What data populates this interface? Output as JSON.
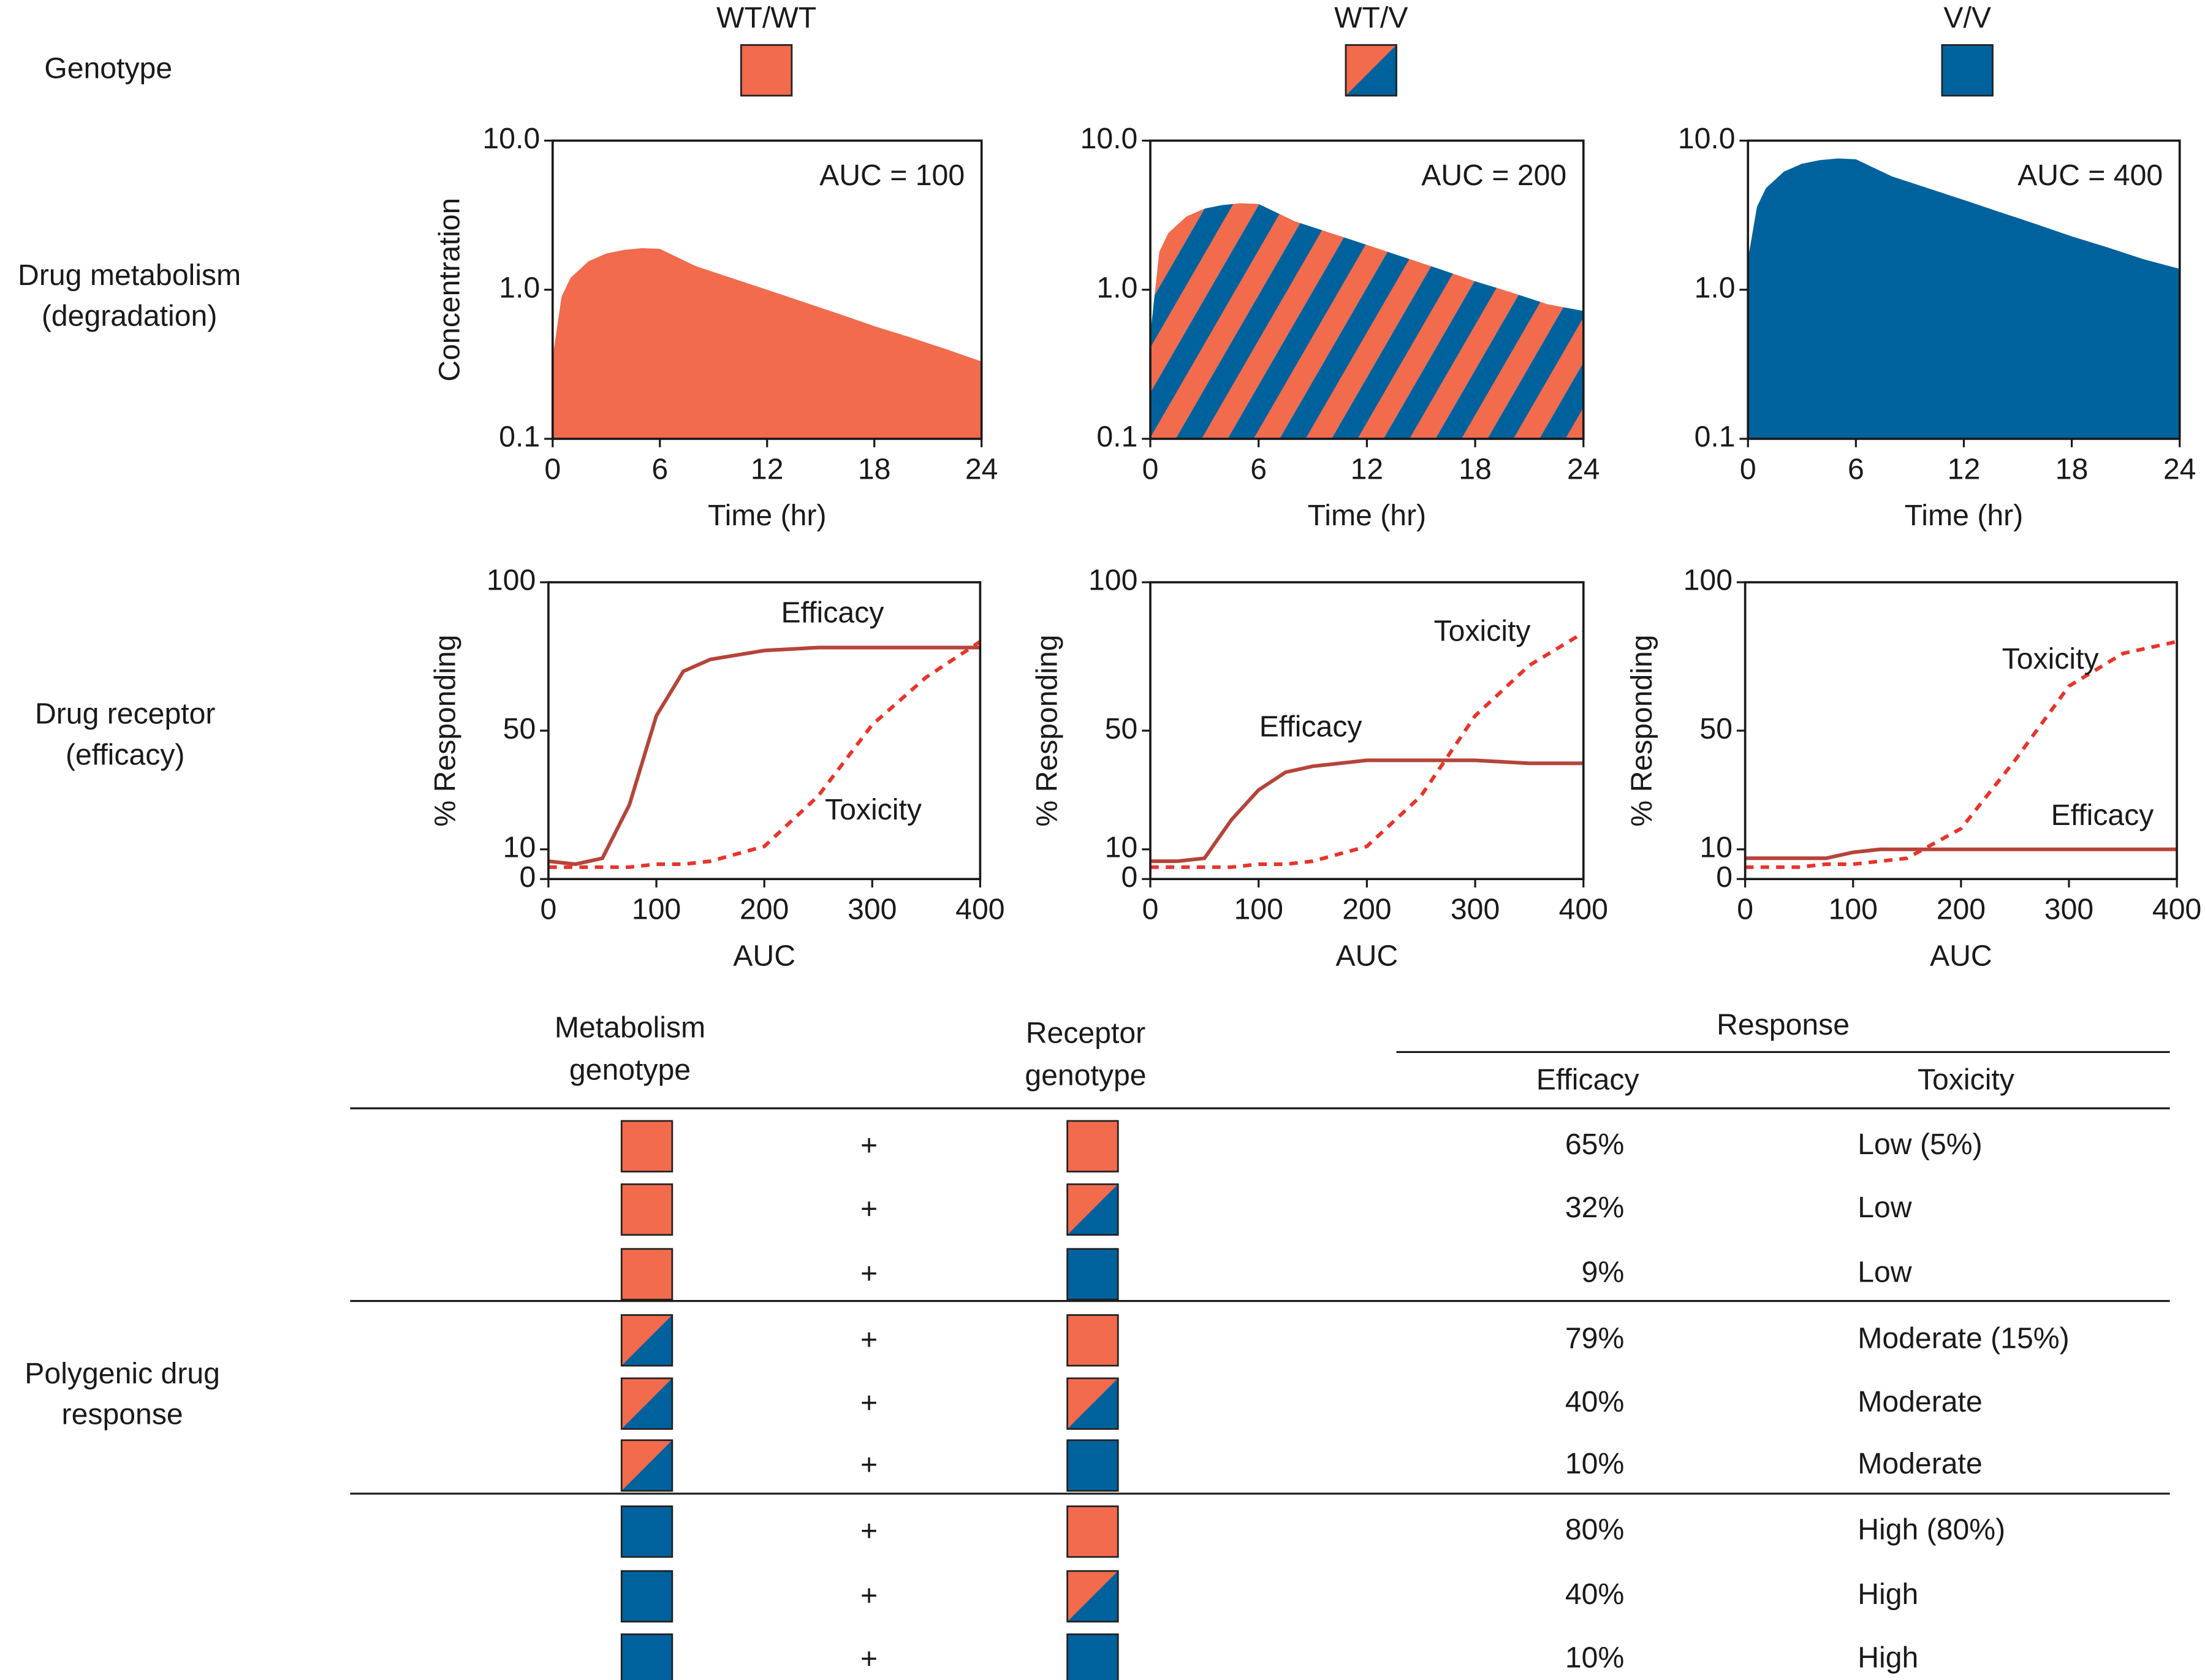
{
  "row_labels": {
    "genotype": "Genotype",
    "metabolism": [
      "Drug metabolism",
      "(degradation)"
    ],
    "receptor": [
      "Drug receptor",
      "(efficacy)"
    ],
    "polygenic": [
      "Polygenic drug",
      "response"
    ]
  },
  "genotypes": [
    {
      "label": "WT/WT",
      "colors": [
        "#f26b4c",
        "#f26b4c"
      ]
    },
    {
      "label": "WT/V",
      "colors": [
        "#f26b4c",
        "#00629d"
      ]
    },
    {
      "label": "V/V",
      "colors": [
        "#00629d",
        "#00629d"
      ]
    }
  ],
  "chart_data": [
    {
      "type": "area",
      "ylabel": "Concentration",
      "xlabel": "Time (hr)",
      "annotation": "AUC = 100",
      "x": [
        0,
        0.5,
        1,
        2,
        3,
        4,
        5,
        6,
        8,
        10,
        12,
        14,
        16,
        18,
        20,
        22,
        24
      ],
      "values": [
        0.35,
        0.9,
        1.2,
        1.55,
        1.75,
        1.85,
        1.9,
        1.88,
        1.44,
        1.2,
        1.0,
        0.83,
        0.69,
        0.57,
        0.48,
        0.4,
        0.33
      ],
      "colors": [
        "#f26b4c"
      ],
      "yscale": "log",
      "xlim": [
        0,
        24
      ],
      "ylim": [
        0.1,
        10
      ],
      "xticks": [
        0,
        6,
        12,
        18,
        24
      ],
      "yticks": [
        0.1,
        {
          "value": 1,
          "label": "1.0"
        },
        {
          "value": 10,
          "label": "10.0"
        }
      ]
    },
    {
      "type": "area",
      "xlabel": "Time (hr)",
      "annotation": "AUC = 200",
      "x": [
        0,
        0.5,
        1,
        2,
        3,
        4,
        5,
        6,
        8,
        10,
        12,
        14,
        16,
        18,
        20,
        22,
        24
      ],
      "values": [
        0.5,
        1.8,
        2.4,
        3.1,
        3.5,
        3.7,
        3.8,
        3.76,
        2.88,
        2.4,
        2.0,
        1.66,
        1.38,
        1.14,
        0.96,
        0.8,
        0.72
      ],
      "colors": [
        "#f26b4c",
        "#00629d"
      ],
      "yscale": "log",
      "xlim": [
        0,
        24
      ],
      "ylim": [
        0.1,
        10
      ],
      "xticks": [
        0,
        6,
        12,
        18,
        24
      ],
      "yticks": [
        0.1,
        {
          "value": 1,
          "label": "1.0"
        },
        {
          "value": 10,
          "label": "10.0"
        }
      ]
    },
    {
      "type": "area",
      "xlabel": "Time (hr)",
      "annotation": "AUC = 400",
      "x": [
        0,
        0.5,
        1,
        2,
        3,
        4,
        5,
        6,
        8,
        10,
        12,
        14,
        16,
        18,
        20,
        22,
        24
      ],
      "values": [
        1.6,
        3.6,
        4.8,
        6.2,
        7.0,
        7.4,
        7.6,
        7.5,
        5.76,
        4.8,
        4.0,
        3.32,
        2.76,
        2.28,
        1.92,
        1.6,
        1.38
      ],
      "colors": [
        "#00629d"
      ],
      "yscale": "log",
      "xlim": [
        0,
        24
      ],
      "ylim": [
        0.1,
        10
      ],
      "xticks": [
        0,
        6,
        12,
        18,
        24
      ],
      "yticks": [
        0.1,
        {
          "value": 1,
          "label": "1.0"
        },
        {
          "value": 10,
          "label": "10.0"
        }
      ]
    },
    {
      "type": "line",
      "ylabel": "% Responding",
      "xlabel": "AUC",
      "x": [
        0,
        25,
        50,
        75,
        100,
        125,
        150,
        200,
        250,
        300,
        350,
        400
      ],
      "series": [
        {
          "name": "Efficacy",
          "color": "#b5443a",
          "dashed": false,
          "values": [
            6,
            5,
            7,
            25,
            55,
            70,
            74,
            77,
            78,
            78,
            78,
            78
          ]
        },
        {
          "name": "Toxicity",
          "color": "#e8342a",
          "dashed": true,
          "values": [
            4,
            4,
            4,
            4,
            5,
            5,
            6,
            11,
            28,
            52,
            68,
            80
          ]
        }
      ],
      "xlim": [
        0,
        400
      ],
      "ylim": [
        0,
        100
      ],
      "xticks": [
        0,
        100,
        200,
        300,
        400
      ],
      "yticks": [
        0,
        10,
        50,
        100
      ]
    },
    {
      "type": "line",
      "ylabel": "% Responding",
      "xlabel": "AUC",
      "x": [
        0,
        25,
        50,
        75,
        100,
        125,
        150,
        200,
        250,
        300,
        350,
        400
      ],
      "series": [
        {
          "name": "Efficacy",
          "color": "#b5443a",
          "dashed": false,
          "values": [
            6,
            6,
            7,
            20,
            30,
            36,
            38,
            40,
            40,
            40,
            39,
            39
          ]
        },
        {
          "name": "Toxicity",
          "color": "#e8342a",
          "dashed": true,
          "values": [
            4,
            4,
            4,
            4,
            5,
            5,
            6,
            11,
            28,
            55,
            72,
            83
          ]
        }
      ],
      "xlim": [
        0,
        400
      ],
      "ylim": [
        0,
        100
      ],
      "xticks": [
        0,
        100,
        200,
        300,
        400
      ],
      "yticks": [
        0,
        10,
        50,
        100
      ]
    },
    {
      "type": "line",
      "ylabel": "% Responding",
      "xlabel": "AUC",
      "x": [
        0,
        25,
        50,
        75,
        100,
        125,
        150,
        200,
        250,
        300,
        350,
        400
      ],
      "series": [
        {
          "name": "Efficacy",
          "color": "#b5443a",
          "dashed": false,
          "values": [
            7,
            7,
            7,
            7,
            9,
            10,
            10,
            10,
            10,
            10,
            10,
            10
          ]
        },
        {
          "name": "Toxicity",
          "color": "#e8342a",
          "dashed": true,
          "values": [
            4,
            4,
            4,
            5,
            5,
            6,
            7,
            17,
            40,
            65,
            76,
            80
          ]
        }
      ],
      "xlim": [
        0,
        400
      ],
      "ylim": [
        0,
        100
      ],
      "xticks": [
        0,
        100,
        200,
        300,
        400
      ],
      "yticks": [
        0,
        10,
        50,
        100
      ]
    }
  ],
  "table": {
    "columns": [
      [
        "Metabolism",
        "genotype"
      ],
      [
        "Receptor",
        "genotype"
      ]
    ],
    "group": "Response",
    "subcolumns": [
      "Efficacy",
      "Toxicity"
    ],
    "rows": [
      {
        "metabolism": [
          "#f26b4c",
          "#f26b4c"
        ],
        "plus": "+",
        "receptor": [
          "#f26b4c",
          "#f26b4c"
        ],
        "efficacy": "65%",
        "toxicity": "Low (5%)"
      },
      {
        "metabolism": [
          "#f26b4c",
          "#f26b4c"
        ],
        "plus": "+",
        "receptor": [
          "#f26b4c",
          "#00629d"
        ],
        "efficacy": "32%",
        "toxicity": "Low"
      },
      {
        "metabolism": [
          "#f26b4c",
          "#f26b4c"
        ],
        "plus": "+",
        "receptor": [
          "#00629d",
          "#00629d"
        ],
        "efficacy": "9%",
        "toxicity": "Low"
      },
      {
        "metabolism": [
          "#f26b4c",
          "#00629d"
        ],
        "plus": "+",
        "receptor": [
          "#f26b4c",
          "#f26b4c"
        ],
        "efficacy": "79%",
        "toxicity": "Moderate (15%)"
      },
      {
        "metabolism": [
          "#f26b4c",
          "#00629d"
        ],
        "plus": "+",
        "receptor": [
          "#f26b4c",
          "#00629d"
        ],
        "efficacy": "40%",
        "toxicity": "Moderate"
      },
      {
        "metabolism": [
          "#f26b4c",
          "#00629d"
        ],
        "plus": "+",
        "receptor": [
          "#00629d",
          "#00629d"
        ],
        "efficacy": "10%",
        "toxicity": "Moderate"
      },
      {
        "metabolism": [
          "#00629d",
          "#00629d"
        ],
        "plus": "+",
        "receptor": [
          "#f26b4c",
          "#f26b4c"
        ],
        "efficacy": "80%",
        "toxicity": "High (80%)"
      },
      {
        "metabolism": [
          "#00629d",
          "#00629d"
        ],
        "plus": "+",
        "receptor": [
          "#f26b4c",
          "#00629d"
        ],
        "efficacy": "40%",
        "toxicity": "High"
      },
      {
        "metabolism": [
          "#00629d",
          "#00629d"
        ],
        "plus": "+",
        "receptor": [
          "#00629d",
          "#00629d"
        ],
        "efficacy": "10%",
        "toxicity": "High"
      }
    ]
  }
}
